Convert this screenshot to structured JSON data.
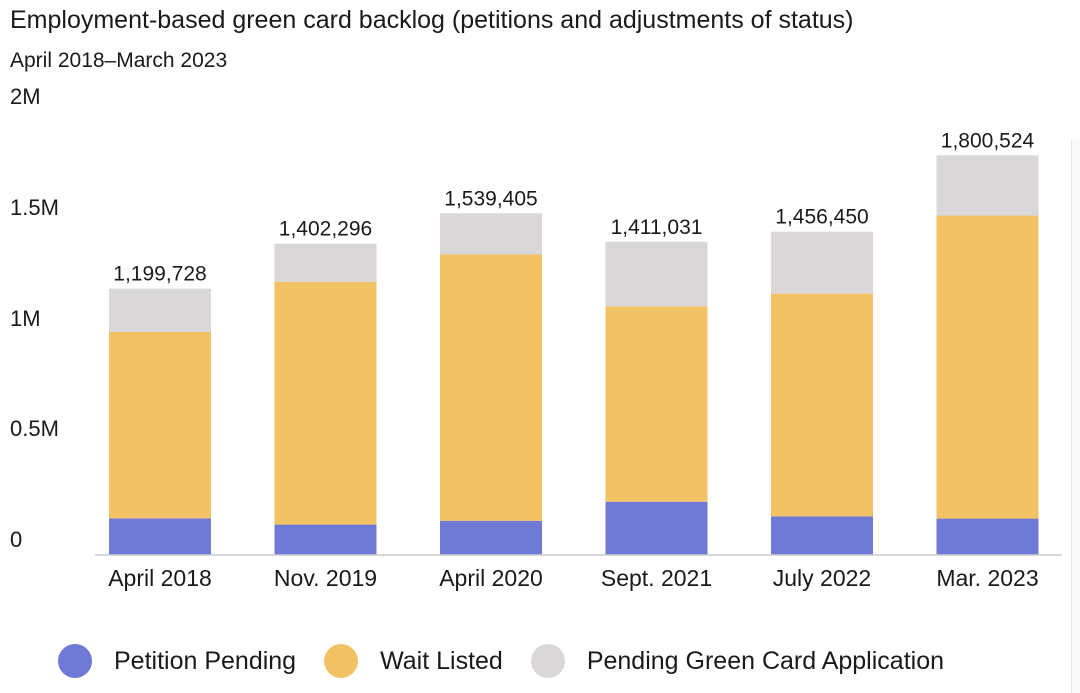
{
  "chart_data": {
    "type": "bar",
    "stacked": true,
    "title": "Employment-based green card backlog (petitions and adjustments of status)",
    "subtitle": "April 2018–March 2023",
    "categories": [
      "April 2018",
      "Nov. 2019",
      "April 2020",
      "Sept. 2021",
      "July 2022",
      "Mar. 2023"
    ],
    "series": [
      {
        "name": "Petition Pending",
        "color": "#6f79d6",
        "values": [
          165000,
          137000,
          154000,
          240000,
          174000,
          164000
        ]
      },
      {
        "name": "Wait Listed",
        "color": "#f3c265",
        "values": [
          840000,
          1094000,
          1200000,
          880000,
          1003000,
          1365000
        ]
      },
      {
        "name": "Pending Green Card Application",
        "color": "#d9d7d8",
        "values": [
          194728,
          171296,
          185405,
          291031,
          279450,
          271524
        ]
      }
    ],
    "totals": [
      "1,199,728",
      "1,402,296",
      "1,539,405",
      "1,411,031",
      "1,456,450",
      "1,800,524"
    ],
    "ylim": [
      0,
      2000000
    ],
    "yticks": [
      {
        "value": 0,
        "label": "0"
      },
      {
        "value": 500000,
        "label": "0.5M"
      },
      {
        "value": 1000000,
        "label": "1M"
      },
      {
        "value": 1500000,
        "label": "1.5M"
      },
      {
        "value": 2000000,
        "label": "2M"
      }
    ],
    "grid": false,
    "legend_position": "bottom"
  }
}
